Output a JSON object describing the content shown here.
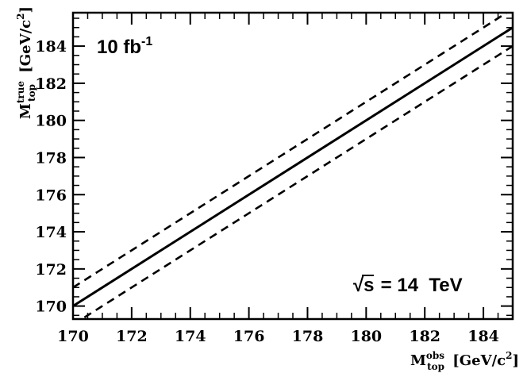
{
  "chart_data": {
    "type": "line",
    "xlim": [
      170,
      185
    ],
    "ylim": [
      169.3,
      185.8
    ],
    "xticks": [
      170,
      172,
      174,
      176,
      178,
      180,
      182,
      184
    ],
    "yticks": [
      170,
      172,
      174,
      176,
      178,
      180,
      182,
      184
    ],
    "grid": false,
    "xlabel": {
      "main": "M",
      "sup": "obs",
      "sub": "top",
      "unit_open": " [GeV/c",
      "unit_sup": "2",
      "unit_close": "]"
    },
    "ylabel": {
      "main": "M",
      "sup": "true",
      "sub": "top",
      "unit_open": " [GeV/c",
      "unit_sup": "2",
      "unit_close": "]"
    },
    "series": [
      {
        "style": "solid",
        "x": [
          170,
          185
        ],
        "y": [
          170,
          185
        ]
      },
      {
        "style": "dashed",
        "x": [
          170,
          185
        ],
        "y": [
          171,
          186
        ]
      },
      {
        "style": "dashed",
        "x": [
          170,
          185
        ],
        "y": [
          169,
          184
        ]
      }
    ],
    "annotations": {
      "luminosity": {
        "value": "10 fb",
        "sup": "-1"
      },
      "energy": {
        "sqrt": "√s",
        "rest": " = 14  TeV"
      }
    }
  }
}
